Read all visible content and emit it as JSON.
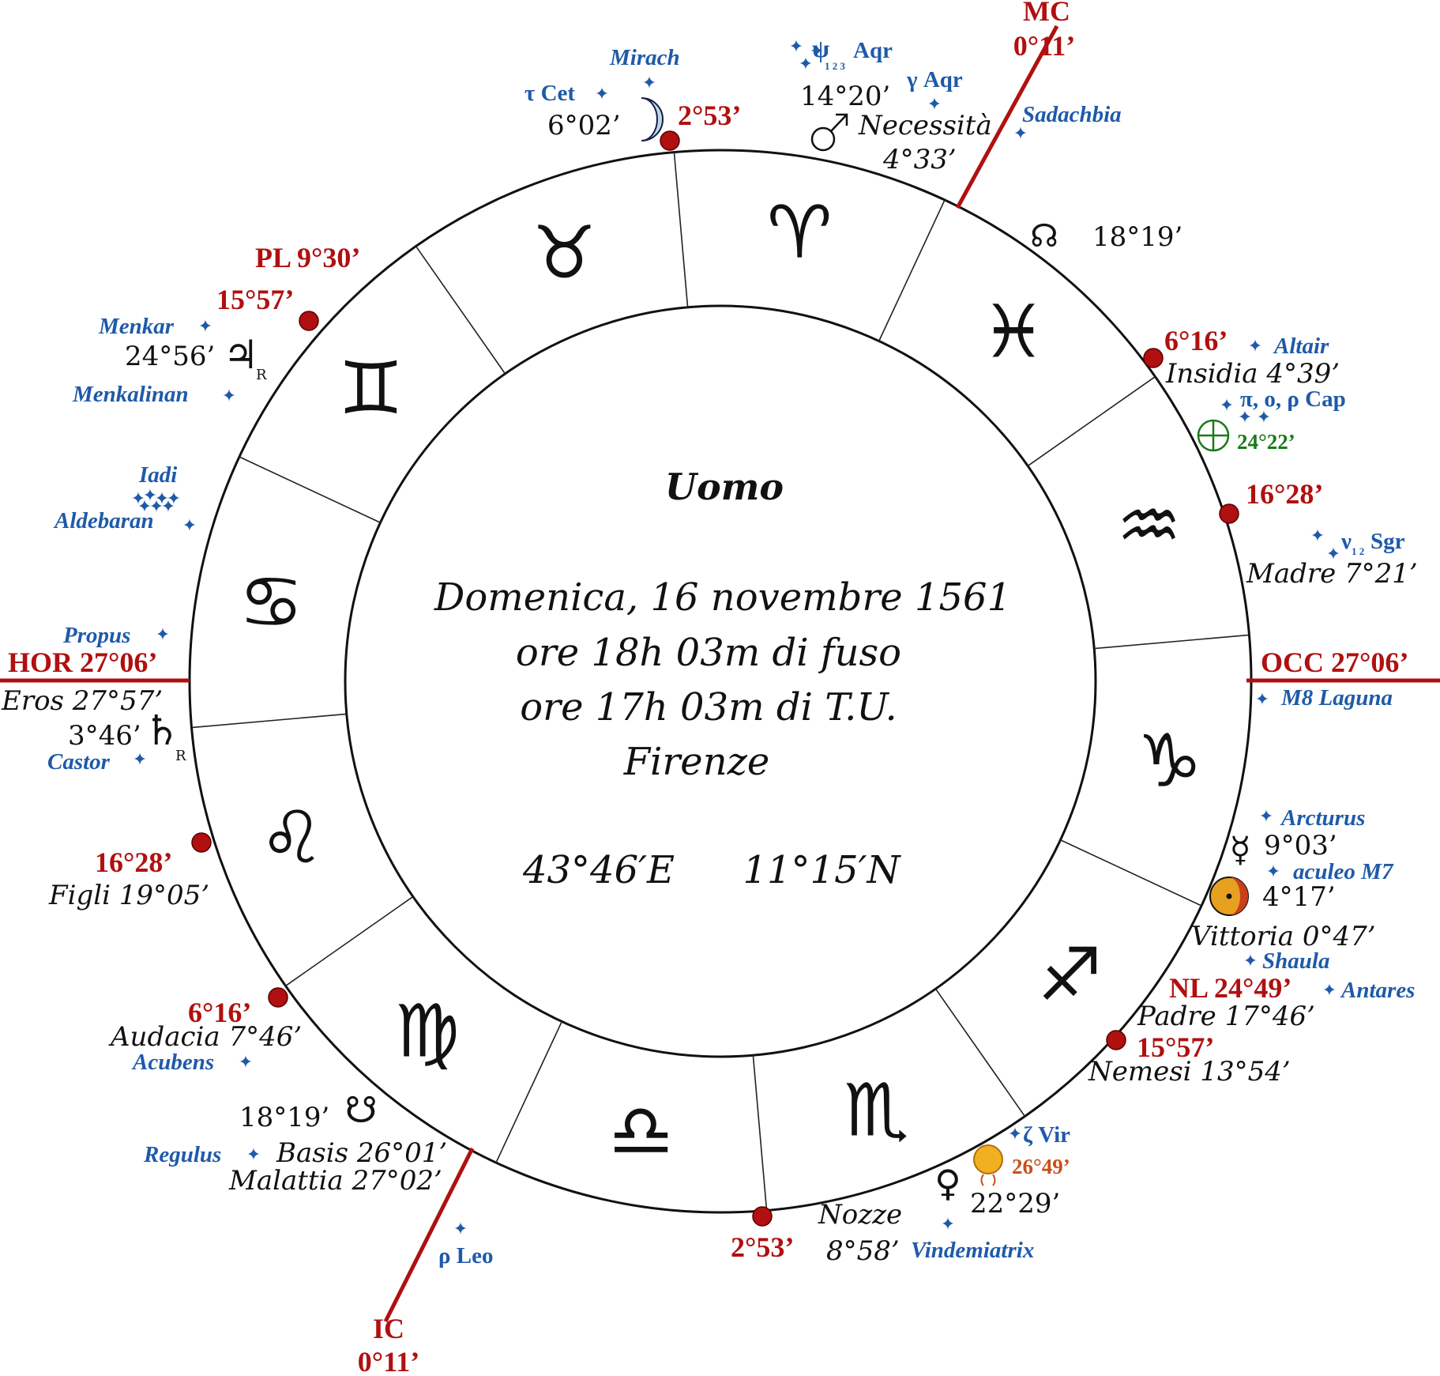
{
  "title": "Uomo",
  "birth": {
    "date": "Domenica, 16 novembre 1561",
    "local_time": "ore 18h 03m di fuso",
    "ut_time": "ore 17h 03m di T.U.",
    "place": "Firenze",
    "longitude": "43°46′E",
    "latitude": "11°15′N"
  },
  "angles": {
    "mc_label": "MC",
    "mc_value": "0°11’",
    "ic_label": "IC",
    "ic_value": "0°11’",
    "asc": "HOR 27°06’",
    "desc": "OCC 27°06’"
  },
  "signs": [
    {
      "name": "aries-sign",
      "glyph": "♈"
    },
    {
      "name": "pisces-sign",
      "glyph": "♓"
    },
    {
      "name": "aquarius-sign",
      "glyph": "♒"
    },
    {
      "name": "capricorn-sign",
      "glyph": "♑"
    },
    {
      "name": "sagittarius-sign",
      "glyph": "♐"
    },
    {
      "name": "scorpio-sign",
      "glyph": "♏"
    },
    {
      "name": "libra-sign",
      "glyph": "♎"
    },
    {
      "name": "virgo-sign",
      "glyph": "♍"
    },
    {
      "name": "leo-sign",
      "glyph": "♌"
    },
    {
      "name": "cancer-sign",
      "glyph": "♋"
    },
    {
      "name": "gemini-sign",
      "glyph": "♊"
    },
    {
      "name": "taurus-sign",
      "glyph": "♉"
    }
  ],
  "colors": {
    "red": "#b01010",
    "blue": "#1f5aa8",
    "green": "#1a7a1a",
    "orange": "#c8501a",
    "sun": "#e8a020",
    "line": "#222222"
  },
  "labels": {
    "tau_cet": "τ Cet",
    "mirach": "Mirach",
    "moon_deg": "6°02’",
    "cusp_253_top": "2°53’",
    "psi_aqr_psi": "ψ",
    "psi_aqr_sub": "1 2 3",
    "psi_aqr_name": "Aqr",
    "gamma_aqr": "γ Aqr",
    "mars_deg": "14°20’",
    "necessita": "Necessità",
    "necessita_deg": "4°33’",
    "sadachbia": "Sadachbia",
    "node_top_deg": "18°19’",
    "pl": "PL 9°30’",
    "cusp_1557_top": "15°57’",
    "menkar": "Menkar",
    "jupiter_deg": "24°56’",
    "menkalinan": "Menkalinan",
    "cusp_616_right": "6°16’",
    "altair": "Altair",
    "insidia": "Insidia 4°39’",
    "cap_stars": "π, ο, ρ Cap",
    "fortuna_deg": "24°22’",
    "iadi": "Iadi",
    "aldebaran": "Aldebaran",
    "cusp_1628_right": "16°28’",
    "nu_sgr_nu": "ν",
    "nu_sgr_sub": "1 2",
    "nu_sgr_name": "Sgr",
    "madre": "Madre 7°21’",
    "propus": "Propus",
    "eros": "Eros 27°57’",
    "saturn_deg": "3°46’",
    "castor": "Castor",
    "m8": "M8 Laguna",
    "arcturus": "Arcturus",
    "mercury_deg": "9°03’",
    "aculeo": "aculeo M7",
    "sun_deg": "4°17’",
    "vittoria": "Vittoria 0°47’",
    "shaula": "Shaula",
    "nl": "NL 24°49’",
    "antares": "Antares",
    "padre": "Padre 17°46’",
    "cusp_1557_bottom": "15°57’",
    "nemesi": "Nemesi 13°54’",
    "cusp_1628_left": "16°28’",
    "figli": "Figli 19°05’",
    "cusp_616_left": "6°16’",
    "audacia": "Audacia 7°46’",
    "acubens": "Acubens",
    "node_bottom_deg": "18°19’",
    "regulus": "Regulus",
    "basis": "Basis 26°01’",
    "malattia": "Malattia 27°02’",
    "rho_leo": "ρ Leo",
    "cusp_253_bottom": "2°53’",
    "nozze": "Nozze",
    "nozze_deg": "8°58’",
    "vindemiatrix": "Vindemiatrix",
    "zeta_vir": "ζ Vir",
    "uranus_deg": "26°49’",
    "venus_deg": "22°29’",
    "retro": "R"
  },
  "glyphs": {
    "moon": "☽",
    "mars": "♂",
    "north_node": "☊",
    "jupiter": "♃",
    "saturn": "♄",
    "mercury": "☿",
    "venus": "♀",
    "south_node": "☋",
    "fortuna": "⊕",
    "star": "✦"
  }
}
